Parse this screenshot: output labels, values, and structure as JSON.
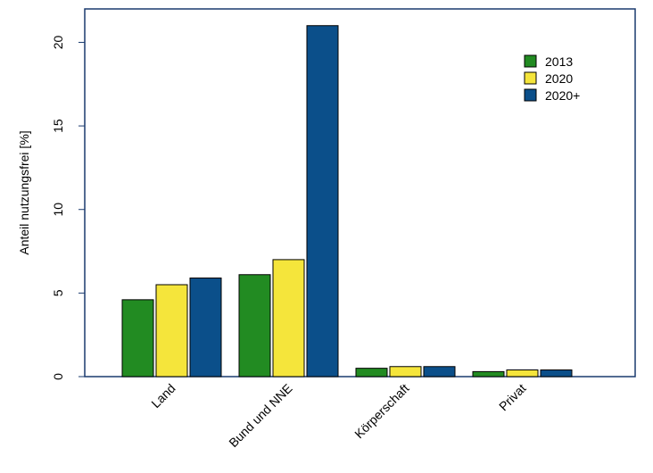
{
  "chart_data": {
    "type": "bar",
    "title": "",
    "xlabel": "",
    "ylabel": "Anteil nutzungsfrei [%]",
    "categories": [
      "Land",
      "Bund und NNE",
      "Körperschaft",
      "Privat"
    ],
    "series": [
      {
        "name": "2013",
        "color": "#228B22",
        "values": [
          4.6,
          6.1,
          0.5,
          0.3
        ]
      },
      {
        "name": "2020",
        "color": "#F5E53B",
        "values": [
          5.5,
          7.0,
          0.6,
          0.4
        ]
      },
      {
        "name": "2020+",
        "color": "#0B4F8A",
        "values": [
          5.9,
          21.0,
          0.6,
          0.4
        ]
      }
    ],
    "ylim": [
      0,
      22
    ],
    "yticks": [
      0,
      5,
      10,
      15,
      20
    ],
    "grid": false,
    "legend_position": "top-right",
    "frame_color": "#1a3a6e"
  }
}
